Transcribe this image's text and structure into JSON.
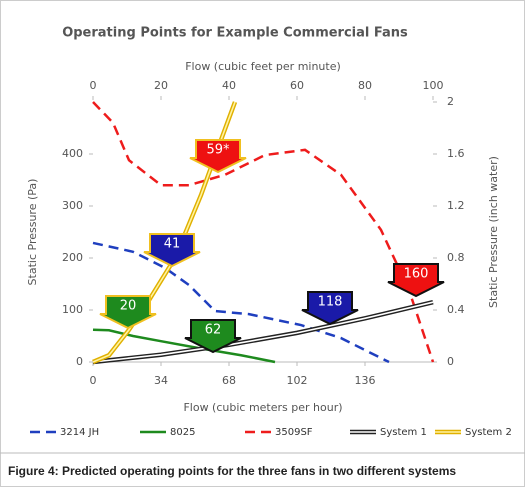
{
  "chart_data": {
    "type": "line",
    "title": "Operating Points for Example Commercial Fans",
    "x_label": "Flow (cubic meters per hour)",
    "x2_label": "Flow (cubic feet per minute)",
    "y_label": "Static Pressure (Pa)",
    "y2_label": "Static Pressure (inch water)",
    "xlim": [
      0,
      170
    ],
    "xticks": [
      0,
      34,
      68,
      102,
      136
    ],
    "x2lim": [
      0,
      100
    ],
    "x2ticks": [
      0,
      20,
      40,
      60,
      80,
      100
    ],
    "ylim": [
      0,
      500
    ],
    "yticks": [
      0,
      100,
      200,
      300,
      400
    ],
    "y2lim": [
      0,
      2
    ],
    "y2ticks": [
      0,
      0.4,
      0.8,
      1.2,
      1.6,
      2
    ],
    "series": [
      {
        "name": "3214 JH",
        "color": "#1f3fbf",
        "style": "dashed",
        "x": [
          0,
          20,
          36,
          48,
          61,
          78,
          104,
          124,
          138,
          148
        ],
        "values": [
          229,
          212,
          181,
          148,
          98,
          92,
          71,
          46,
          19,
          0
        ]
      },
      {
        "name": "8025",
        "color": "#1e8a1e",
        "style": "solid",
        "x": [
          0,
          8,
          20,
          34,
          54,
          74,
          91
        ],
        "values": [
          62,
          61,
          50,
          40,
          26,
          13,
          0
        ]
      },
      {
        "name": "3509SF",
        "color": "#ee1c1c",
        "style": "dashed",
        "x": [
          0,
          10,
          18,
          34,
          48,
          66,
          86,
          106,
          124,
          144,
          158,
          170
        ],
        "values": [
          500,
          460,
          388,
          340,
          340,
          360,
          398,
          408,
          360,
          254,
          138,
          0
        ]
      },
      {
        "name": "System 1",
        "color": "#222222",
        "style": "double",
        "x": [
          0,
          34,
          68,
          102,
          136,
          170
        ],
        "values": [
          0,
          14,
          33,
          56,
          84,
          115
        ]
      },
      {
        "name": "System 2",
        "color": "#e0b000",
        "style": "double",
        "x": [
          0,
          8,
          18,
          28,
          41,
          54,
          64,
          71
        ],
        "values": [
          0,
          13,
          62,
          119,
          200,
          321,
          427,
          500
        ]
      }
    ],
    "annotations": [
      {
        "text": "59*",
        "color": "#ee1111",
        "border": "#f0c020"
      },
      {
        "text": "41",
        "color": "#1a1aa8",
        "border": "#f0c020"
      },
      {
        "text": "20",
        "color": "#1e8a1e",
        "border": "#f0c020"
      },
      {
        "text": "62",
        "color": "#1e8a1e",
        "border": "#111111"
      },
      {
        "text": "118",
        "color": "#1a1aa8",
        "border": "#111111"
      },
      {
        "text": "160",
        "color": "#ee1111",
        "border": "#111111"
      }
    ],
    "caption": "Figure 4: Predicted operating points for the three fans in two different systems"
  }
}
